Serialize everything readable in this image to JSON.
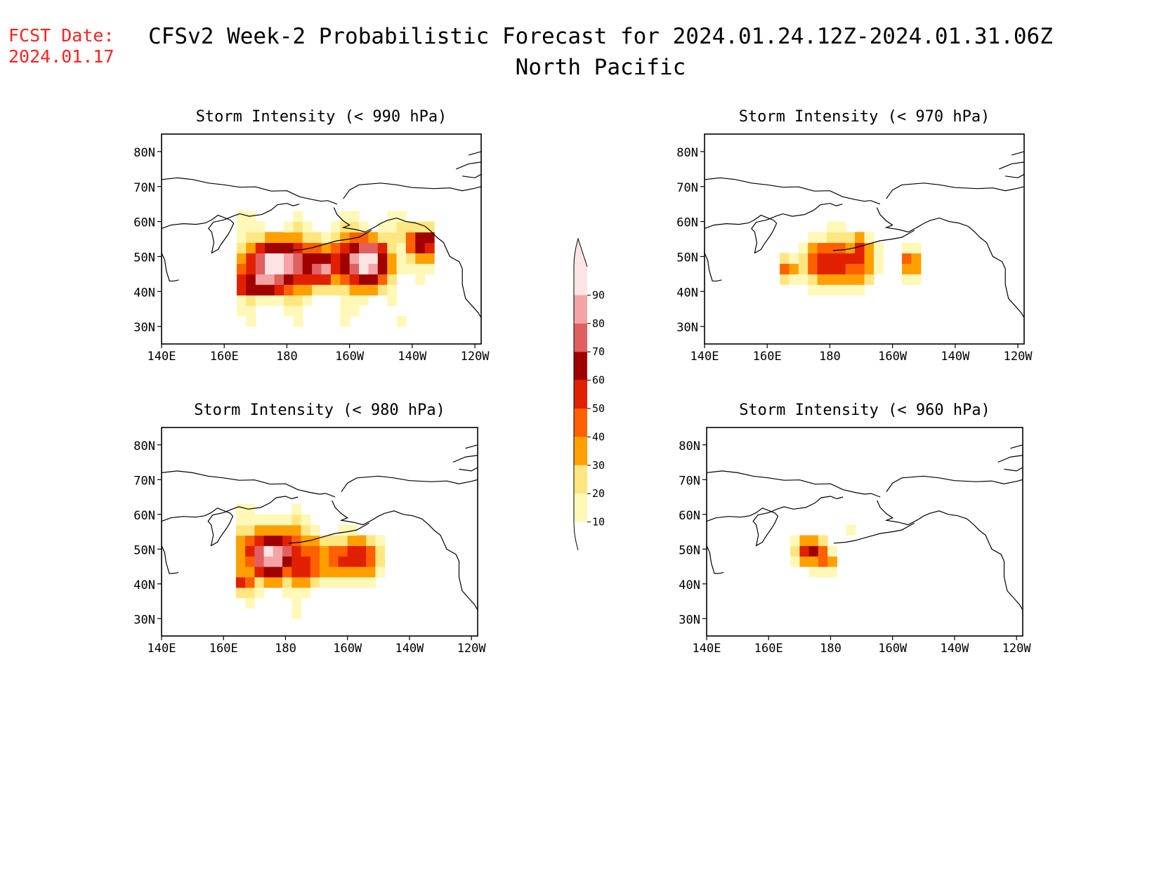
{
  "header": {
    "fcst_label": "FCST Date:",
    "fcst_date": "2024.01.17",
    "title": "CFSv2 Week-2 Probabilistic Forecast for 2024.01.24.12Z-2024.01.31.06Z",
    "region": "North Pacific"
  },
  "panels": [
    {
      "title": "Storm Intensity (< 990 hPa)",
      "max_prob": 95
    },
    {
      "title": "Storm Intensity (< 970 hPa)",
      "max_prob": 65
    },
    {
      "title": "Storm Intensity (< 980 hPa)",
      "max_prob": 85
    },
    {
      "title": "Storm Intensity (< 960 hPa)",
      "max_prob": 60
    }
  ],
  "lat_ticks": [
    "80N",
    "70N",
    "60N",
    "50N",
    "40N",
    "30N"
  ],
  "lon_ticks": [
    "140E",
    "160E",
    "180",
    "160W",
    "140W",
    "120W"
  ],
  "colorbar": {
    "levels": [
      "10",
      "20",
      "30",
      "40",
      "50",
      "60",
      "70",
      "80",
      "90"
    ],
    "colors": [
      "#fff8b8",
      "#ffe680",
      "#ffa000",
      "#ff6000",
      "#e02000",
      "#a00000",
      "#e06060",
      "#f4a4a4",
      "#fce4e4"
    ]
  }
}
